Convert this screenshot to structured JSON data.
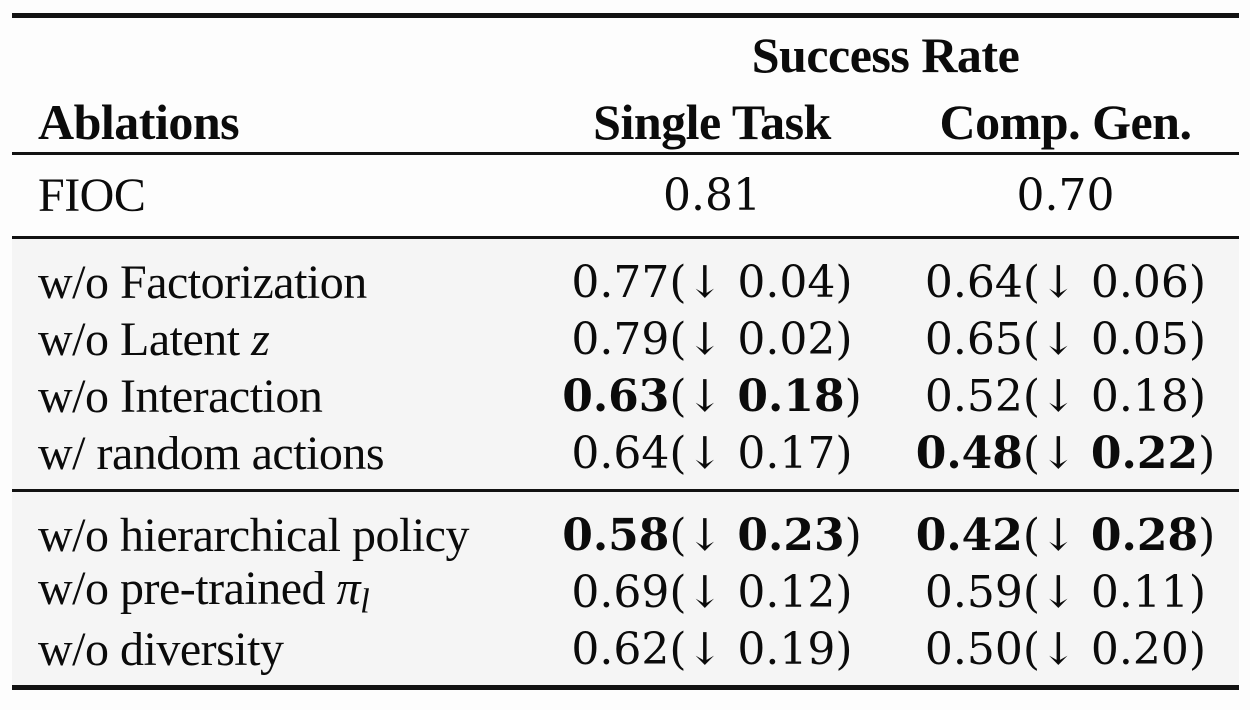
{
  "table": {
    "header": {
      "group": "Success Rate",
      "ablations": "Ablations",
      "single_task": "Single Task",
      "comp_gen": "Comp. Gen."
    },
    "sections": [
      {
        "name": "baseline",
        "rows": [
          {
            "label": [
              {
                "t": "FIOC"
              }
            ],
            "single_task": [
              {
                "t": "0.81"
              }
            ],
            "comp_gen": [
              {
                "t": "0.70"
              }
            ]
          }
        ]
      },
      {
        "name": "component-ablations",
        "rows": [
          {
            "label": [
              {
                "t": "w/o Factorization"
              }
            ],
            "single_task": [
              {
                "t": "0.77"
              },
              {
                "t": "(↓ "
              },
              {
                "t": "0.04"
              },
              {
                "t": ")"
              }
            ],
            "comp_gen": [
              {
                "t": "0.64"
              },
              {
                "t": "(↓ "
              },
              {
                "t": "0.06"
              },
              {
                "t": ")"
              }
            ]
          },
          {
            "label": [
              {
                "t": "w/o Latent "
              },
              {
                "t": "z",
                "i": true
              }
            ],
            "single_task": [
              {
                "t": "0.79"
              },
              {
                "t": "(↓ "
              },
              {
                "t": "0.02"
              },
              {
                "t": ")"
              }
            ],
            "comp_gen": [
              {
                "t": "0.65"
              },
              {
                "t": "(↓ "
              },
              {
                "t": "0.05"
              },
              {
                "t": ")"
              }
            ]
          },
          {
            "label": [
              {
                "t": "w/o Interaction"
              }
            ],
            "single_task": [
              {
                "t": "0.63",
                "b": true
              },
              {
                "t": "(↓ "
              },
              {
                "t": "0.18",
                "b": true
              },
              {
                "t": ")"
              }
            ],
            "comp_gen": [
              {
                "t": "0.52"
              },
              {
                "t": "(↓ "
              },
              {
                "t": "0.18"
              },
              {
                "t": ")"
              }
            ]
          },
          {
            "label": [
              {
                "t": "w/ random actions"
              }
            ],
            "single_task": [
              {
                "t": "0.64"
              },
              {
                "t": "(↓ "
              },
              {
                "t": "0.17"
              },
              {
                "t": ")"
              }
            ],
            "comp_gen": [
              {
                "t": "0.48",
                "b": true
              },
              {
                "t": "(↓ "
              },
              {
                "t": "0.22",
                "b": true
              },
              {
                "t": ")"
              }
            ]
          }
        ]
      },
      {
        "name": "policy-ablations",
        "rows": [
          {
            "label": [
              {
                "t": "w/o hierarchical policy"
              }
            ],
            "single_task": [
              {
                "t": "0.58",
                "b": true
              },
              {
                "t": "(↓ "
              },
              {
                "t": "0.23",
                "b": true
              },
              {
                "t": ")"
              }
            ],
            "comp_gen": [
              {
                "t": "0.42",
                "b": true
              },
              {
                "t": "(↓ "
              },
              {
                "t": "0.28",
                "b": true
              },
              {
                "t": ")"
              }
            ]
          },
          {
            "label": [
              {
                "t": "w/o pre-trained "
              },
              {
                "t": "π",
                "i": true
              },
              {
                "t": "l",
                "i": true,
                "sub": true
              }
            ],
            "single_task": [
              {
                "t": "0.69"
              },
              {
                "t": "(↓ "
              },
              {
                "t": "0.12"
              },
              {
                "t": ")"
              }
            ],
            "comp_gen": [
              {
                "t": "0.59"
              },
              {
                "t": "(↓ "
              },
              {
                "t": "0.11"
              },
              {
                "t": ")"
              }
            ]
          },
          {
            "label": [
              {
                "t": "w/o diversity"
              }
            ],
            "single_task": [
              {
                "t": "0.62"
              },
              {
                "t": "(↓ "
              },
              {
                "t": "0.19"
              },
              {
                "t": ")"
              }
            ],
            "comp_gen": [
              {
                "t": "0.50"
              },
              {
                "t": "(↓ "
              },
              {
                "t": "0.20"
              },
              {
                "t": ")"
              }
            ]
          }
        ]
      }
    ],
    "colors": {
      "text": "#0b0b0b",
      "rule": "#121212",
      "block_shade": "#f5f5f5",
      "background": "#fdfdfd"
    }
  }
}
